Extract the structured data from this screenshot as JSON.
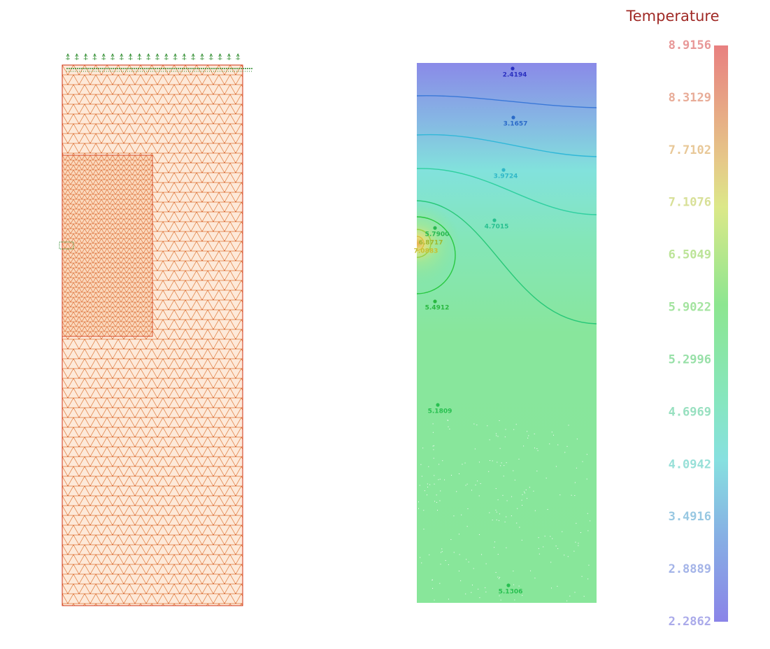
{
  "colorbar": {
    "title": "Temperature",
    "labels": [
      "8.9156",
      "8.3129",
      "7.7102",
      "7.1076",
      "6.5049",
      "5.9022",
      "5.2996",
      "4.6969",
      "4.0942",
      "3.4916",
      "2.8889",
      "2.2862"
    ]
  },
  "probes": [
    {
      "label": "2.4194"
    },
    {
      "label": "3.1657"
    },
    {
      "label": "3.9724"
    },
    {
      "label": "4.7015"
    },
    {
      "label": "5.7900"
    },
    {
      "label": "6.8717"
    },
    {
      "label": "7.0883"
    },
    {
      "label": "5.4912"
    },
    {
      "label": "5.1809"
    },
    {
      "label": "5.1306"
    }
  ]
}
